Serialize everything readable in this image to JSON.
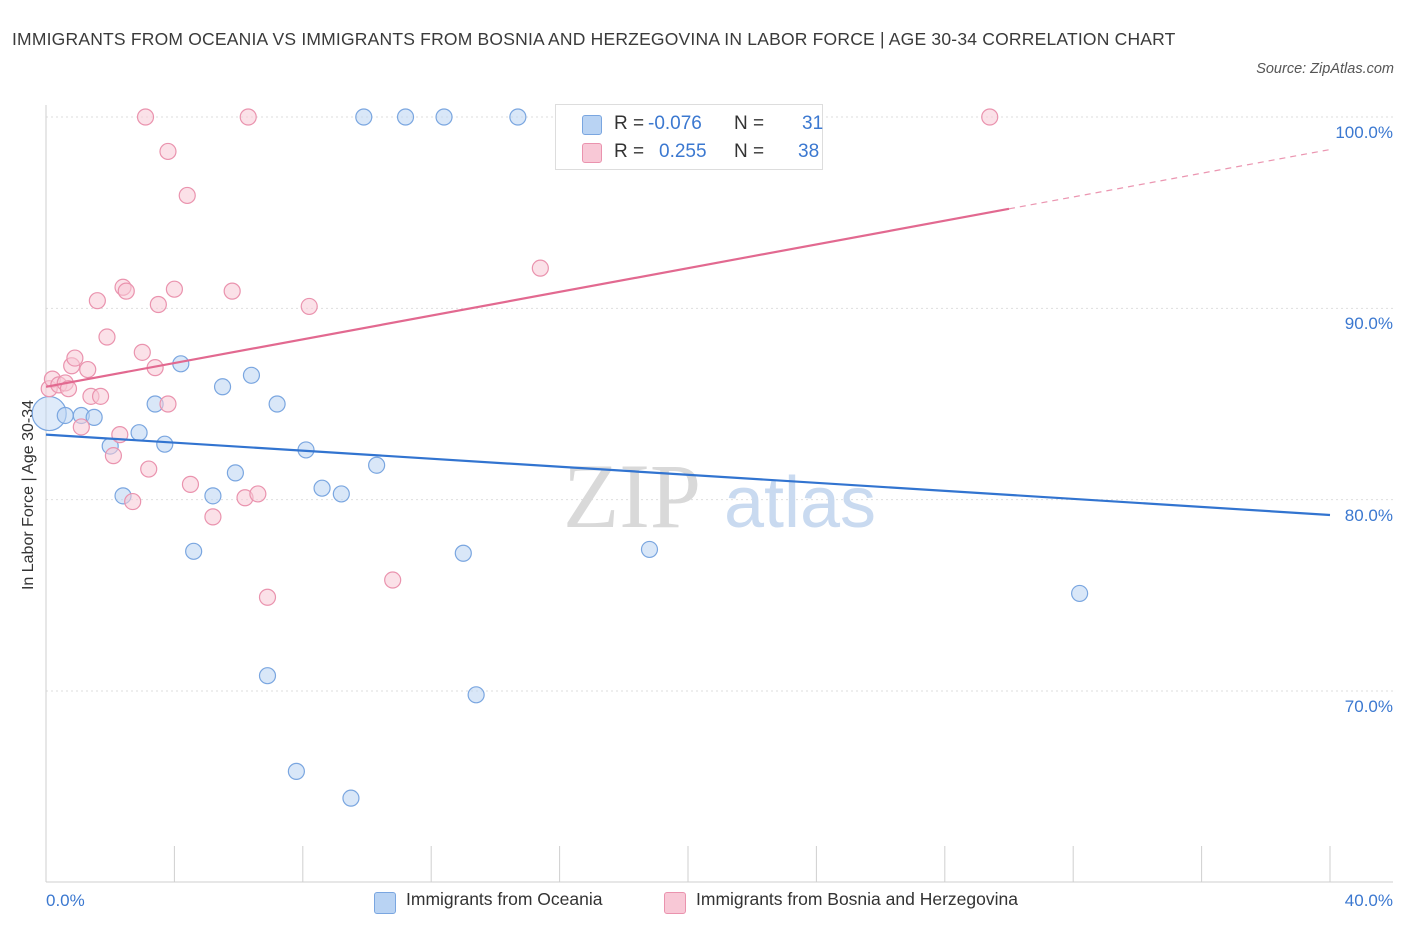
{
  "title": "IMMIGRANTS FROM OCEANIA VS IMMIGRANTS FROM BOSNIA AND HERZEGOVINA IN LABOR FORCE | AGE 30-34 CORRELATION CHART",
  "source": "Source: ZipAtlas.com",
  "watermark": {
    "zip": "ZIP",
    "atlas": "atlas"
  },
  "legend": {
    "r_label": "R =",
    "n_label": "N =",
    "rows": [
      {
        "r": "-0.076",
        "n": "31"
      },
      {
        "r": "0.255",
        "n": "38"
      }
    ]
  },
  "colors": {
    "blue_fill": "#b9d3f3",
    "blue_stroke": "#7aa6e0",
    "blue_line": "#3274d0",
    "pink_fill": "#f8c8d6",
    "pink_stroke": "#ea93ae",
    "pink_line": "#e26990",
    "axis_text": "#3b78d0",
    "grid": "#dedede"
  },
  "chart_data": {
    "type": "scatter",
    "title": "IMMIGRANTS FROM OCEANIA VS IMMIGRANTS FROM BOSNIA AND HERZEGOVINA IN LABOR FORCE | AGE 30-34 CORRELATION CHART",
    "xlabel": "",
    "ylabel": "In Labor Force | Age 30-34",
    "xlim": [
      0,
      40
    ],
    "ylim": [
      60,
      100
    ],
    "x_tick_labels": [
      "0.0%",
      "40.0%"
    ],
    "y_ticks": [
      70,
      80,
      90,
      100
    ],
    "y_tick_labels": [
      "70.0%",
      "80.0%",
      "90.0%",
      "100.0%"
    ],
    "grid": true,
    "series": [
      {
        "name": "Immigrants from Oceania",
        "color": "blue",
        "R": -0.076,
        "N": 31,
        "trend": {
          "x": [
            0,
            40
          ],
          "y": [
            83.4,
            79.2
          ],
          "dashed_from_x": null
        },
        "points": [
          [
            0.1,
            84.5
          ],
          [
            0.6,
            84.4
          ],
          [
            1.1,
            84.4
          ],
          [
            1.5,
            84.3
          ],
          [
            2.0,
            82.8
          ],
          [
            2.4,
            80.2
          ],
          [
            2.9,
            83.5
          ],
          [
            3.4,
            85.0
          ],
          [
            3.7,
            82.9
          ],
          [
            4.2,
            87.1
          ],
          [
            4.6,
            77.3
          ],
          [
            5.2,
            80.2
          ],
          [
            5.5,
            85.9
          ],
          [
            5.9,
            81.4
          ],
          [
            6.4,
            86.5
          ],
          [
            6.9,
            70.8
          ],
          [
            7.2,
            85.0
          ],
          [
            8.1,
            82.6
          ],
          [
            7.8,
            65.8
          ],
          [
            8.6,
            80.6
          ],
          [
            9.2,
            80.3
          ],
          [
            9.5,
            64.4
          ],
          [
            9.9,
            100.0
          ],
          [
            10.3,
            81.8
          ],
          [
            11.2,
            100.0
          ],
          [
            12.4,
            100.0
          ],
          [
            13.0,
            77.2
          ],
          [
            13.4,
            69.8
          ],
          [
            14.7,
            100.0
          ],
          [
            18.8,
            77.4
          ],
          [
            32.2,
            75.1
          ]
        ]
      },
      {
        "name": "Immigrants from Bosnia and Herzegovina",
        "color": "pink",
        "R": 0.255,
        "N": 38,
        "trend": {
          "x": [
            0,
            40
          ],
          "y": [
            85.9,
            98.3
          ],
          "dashed_from_x": 30.0
        },
        "points": [
          [
            0.1,
            85.8
          ],
          [
            0.2,
            86.3
          ],
          [
            0.4,
            86.0
          ],
          [
            0.6,
            86.1
          ],
          [
            0.7,
            85.8
          ],
          [
            0.8,
            87.0
          ],
          [
            0.9,
            87.4
          ],
          [
            1.1,
            83.8
          ],
          [
            1.3,
            86.8
          ],
          [
            1.4,
            85.4
          ],
          [
            1.6,
            90.4
          ],
          [
            1.7,
            85.4
          ],
          [
            1.9,
            88.5
          ],
          [
            2.1,
            82.3
          ],
          [
            2.3,
            83.4
          ],
          [
            2.4,
            91.1
          ],
          [
            2.5,
            90.9
          ],
          [
            2.7,
            79.9
          ],
          [
            3.0,
            87.7
          ],
          [
            3.1,
            100.0
          ],
          [
            3.2,
            81.6
          ],
          [
            3.4,
            86.9
          ],
          [
            3.5,
            90.2
          ],
          [
            3.8,
            85.0
          ],
          [
            3.8,
            98.2
          ],
          [
            4.0,
            91.0
          ],
          [
            4.4,
            95.9
          ],
          [
            4.5,
            80.8
          ],
          [
            5.2,
            79.1
          ],
          [
            5.8,
            90.9
          ],
          [
            6.2,
            80.1
          ],
          [
            6.3,
            100.0
          ],
          [
            6.6,
            80.3
          ],
          [
            6.9,
            74.9
          ],
          [
            8.2,
            90.1
          ],
          [
            10.8,
            75.8
          ],
          [
            15.4,
            92.1
          ],
          [
            29.4,
            100.0
          ]
        ]
      }
    ]
  }
}
